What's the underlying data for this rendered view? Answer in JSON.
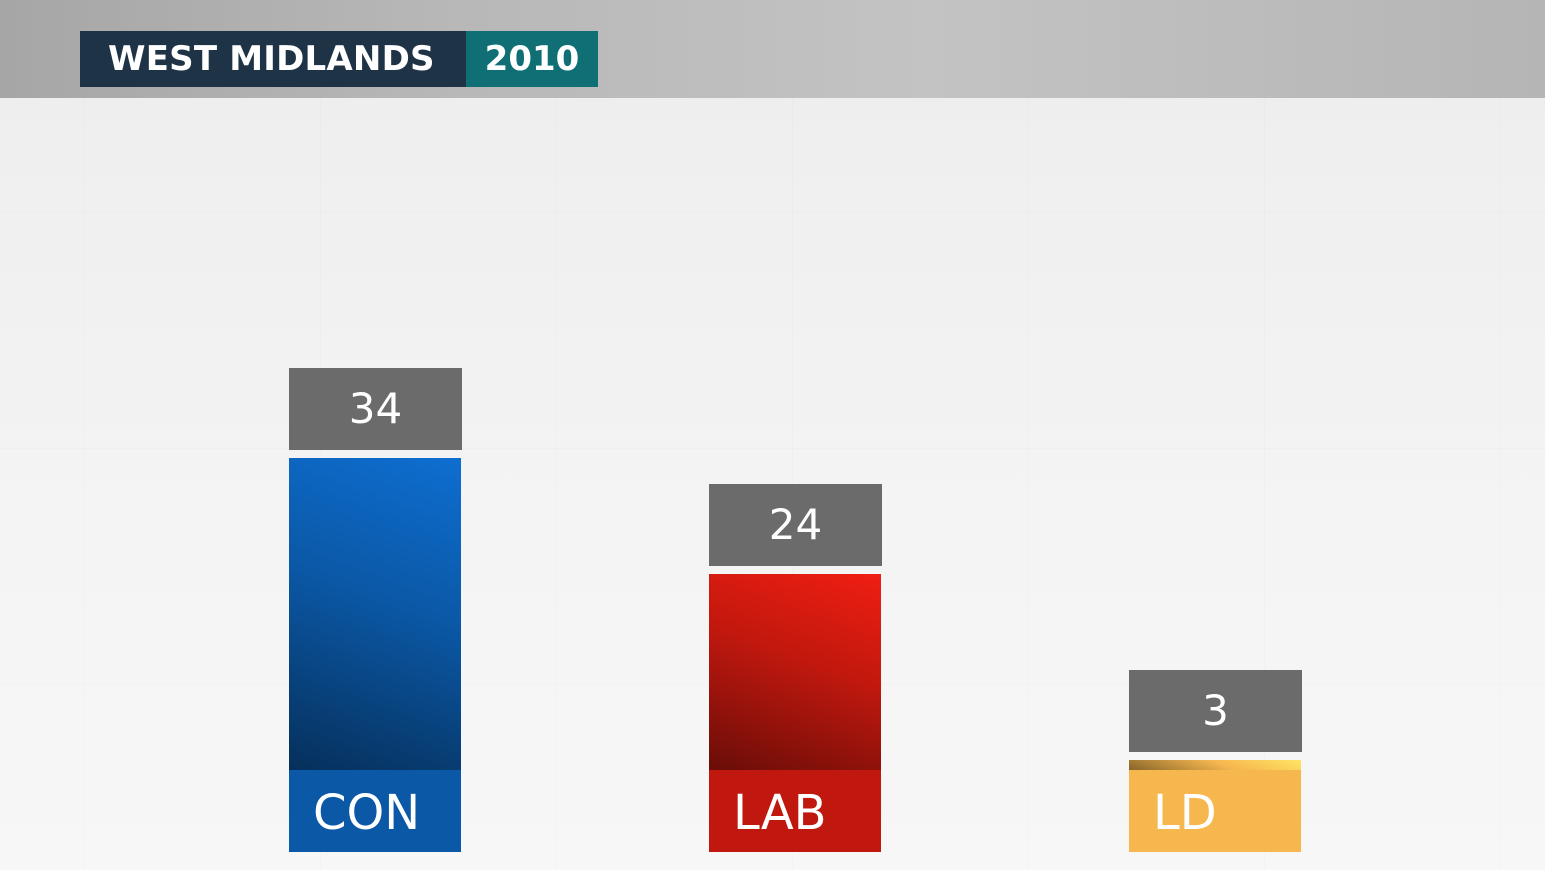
{
  "header": {
    "region": "WEST MIDLANDS",
    "year": "2010"
  },
  "chart_data": {
    "type": "bar",
    "categories": [
      "CON",
      "LAB",
      "LD"
    ],
    "values": [
      34,
      24,
      3
    ],
    "value_labels": [
      "34",
      "24",
      "3"
    ],
    "colors": {
      "CON": "#0b58a6",
      "LAB": "#c0180e",
      "LD": "#f6b74f"
    },
    "title": "WEST MIDLANDS",
    "subtitle": "2010",
    "grid": false,
    "legend": "none"
  }
}
